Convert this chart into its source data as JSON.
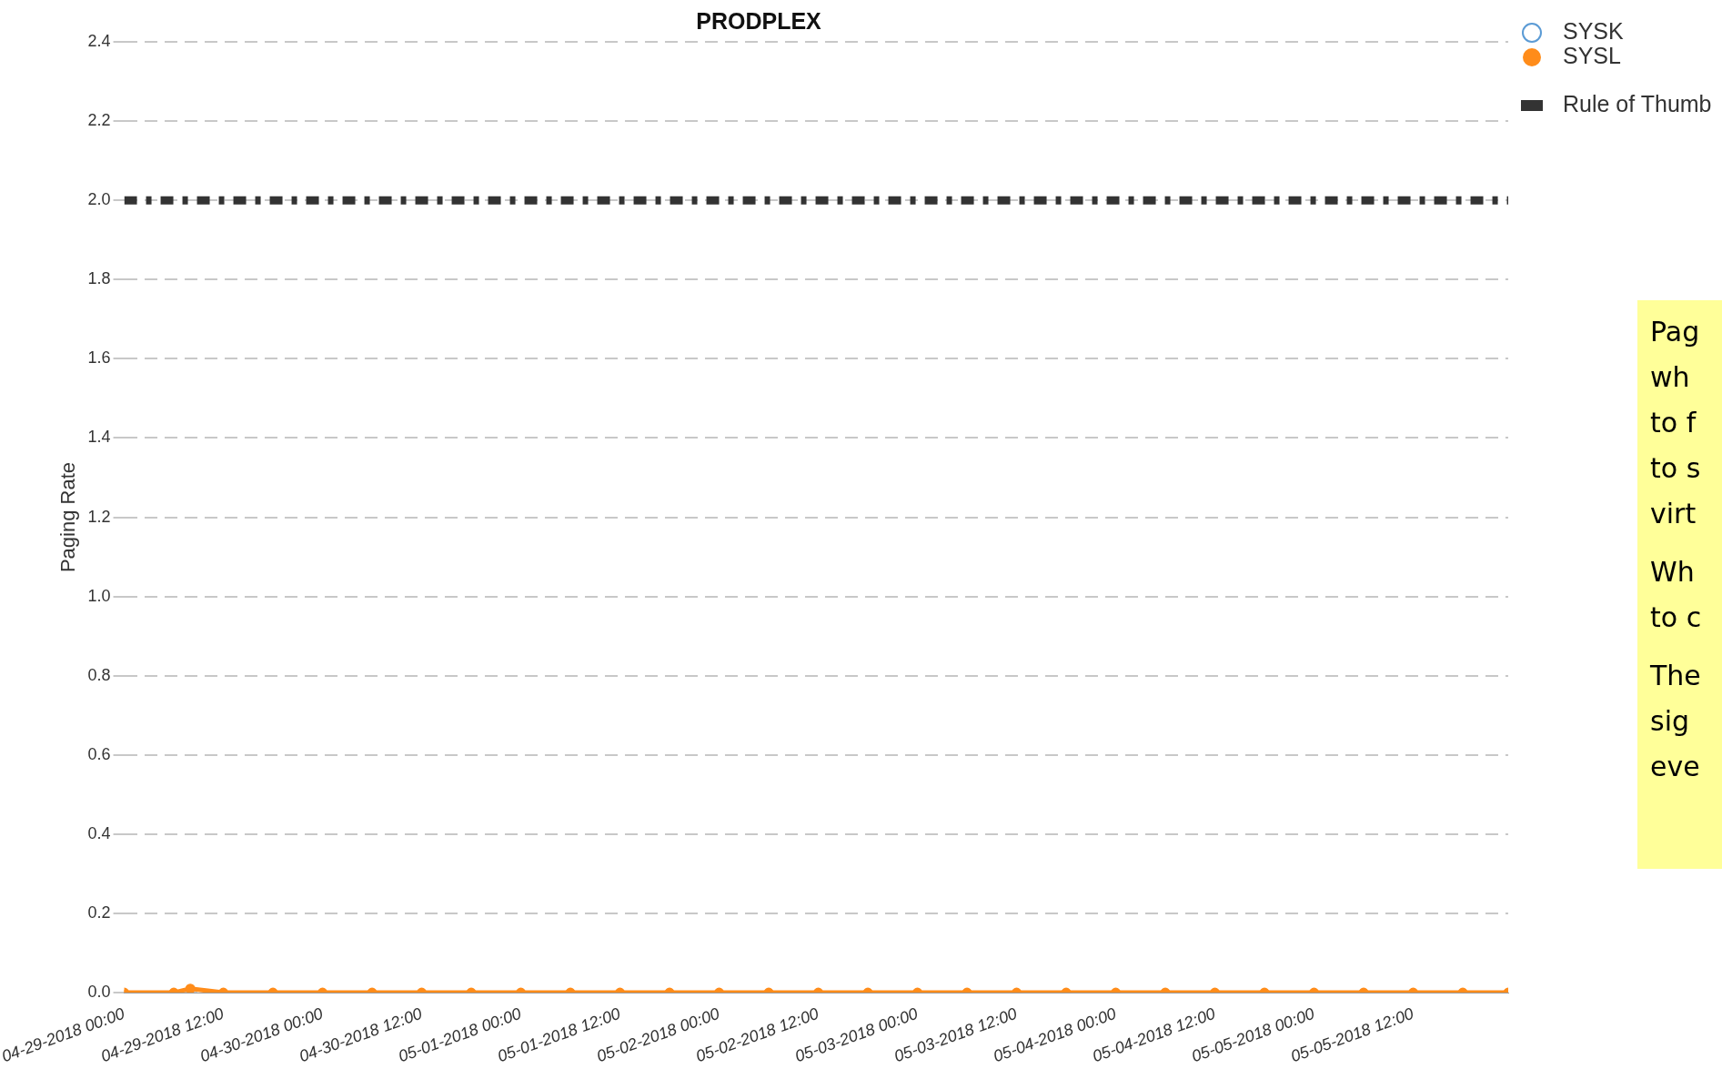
{
  "chart_data": {
    "type": "line",
    "title": "PRODPLEX",
    "ylabel": "Paging Rate",
    "x": [
      "2018-04-29T00:00",
      "2018-04-29T06:00",
      "2018-04-29T08:00",
      "2018-04-29T12:00",
      "2018-04-29T18:00",
      "2018-04-30T00:00",
      "2018-04-30T06:00",
      "2018-04-30T12:00",
      "2018-04-30T18:00",
      "2018-05-01T00:00",
      "2018-05-01T06:00",
      "2018-05-01T12:00",
      "2018-05-01T18:00",
      "2018-05-02T00:00",
      "2018-05-02T06:00",
      "2018-05-02T12:00",
      "2018-05-02T18:00",
      "2018-05-03T00:00",
      "2018-05-03T06:00",
      "2018-05-03T12:00",
      "2018-05-03T18:00",
      "2018-05-04T00:00",
      "2018-05-04T06:00",
      "2018-05-04T12:00",
      "2018-05-04T18:00",
      "2018-05-05T00:00",
      "2018-05-05T06:00",
      "2018-05-05T12:00",
      "2018-05-05T18:00",
      "2018-05-05T23:30"
    ],
    "series": [
      {
        "name": "SYSK",
        "color": "#5b9bd5",
        "values": [
          null,
          null,
          null,
          null,
          null,
          null,
          null,
          null,
          null,
          null,
          null,
          null,
          null,
          null,
          null,
          null,
          null,
          null,
          null,
          null,
          null,
          null,
          null,
          null,
          null,
          null,
          null,
          null,
          null,
          null
        ]
      },
      {
        "name": "SYSL",
        "color": "#ff8c1a",
        "values": [
          0,
          0,
          0.01,
          0,
          0,
          0,
          0,
          0,
          0,
          0,
          0,
          0,
          0,
          0,
          0,
          0,
          0,
          0,
          0,
          0,
          0,
          0,
          0,
          0,
          0,
          0,
          0,
          0,
          0,
          0
        ]
      }
    ],
    "ref_lines": [
      {
        "axis": "y",
        "value": 2.0,
        "label": "Rule of Thumb",
        "color": "#333333",
        "line_style": "dashed"
      }
    ],
    "xlim": [
      "2018-04-29T00:00",
      "2018-05-05T23:30"
    ],
    "xticks": [
      {
        "value": "2018-04-29T00:00",
        "label": "04-29-2018 00:00"
      },
      {
        "value": "2018-04-29T12:00",
        "label": "04-29-2018 12:00"
      },
      {
        "value": "2018-04-30T00:00",
        "label": "04-30-2018 00:00"
      },
      {
        "value": "2018-04-30T12:00",
        "label": "04-30-2018 12:00"
      },
      {
        "value": "2018-05-01T00:00",
        "label": "05-01-2018 00:00"
      },
      {
        "value": "2018-05-01T12:00",
        "label": "05-01-2018 12:00"
      },
      {
        "value": "2018-05-02T00:00",
        "label": "05-02-2018 00:00"
      },
      {
        "value": "2018-05-02T12:00",
        "label": "05-02-2018 12:00"
      },
      {
        "value": "2018-05-03T00:00",
        "label": "05-03-2018 00:00"
      },
      {
        "value": "2018-05-03T12:00",
        "label": "05-03-2018 12:00"
      },
      {
        "value": "2018-05-04T00:00",
        "label": "05-04-2018 00:00"
      },
      {
        "value": "2018-05-04T12:00",
        "label": "05-04-2018 12:00"
      },
      {
        "value": "2018-05-05T00:00",
        "label": "05-05-2018 00:00"
      },
      {
        "value": "2018-05-05T12:00",
        "label": "05-05-2018 12:00"
      }
    ],
    "ylim": [
      0,
      2.4
    ],
    "yticks": [
      {
        "value": 0,
        "label": "0.0"
      },
      {
        "value": 0.2,
        "label": "0.2"
      },
      {
        "value": 0.4,
        "label": "0.4"
      },
      {
        "value": 0.6,
        "label": "0.6"
      },
      {
        "value": 0.8,
        "label": "0.8"
      },
      {
        "value": 1.0,
        "label": "1.0"
      },
      {
        "value": 1.2,
        "label": "1.2"
      },
      {
        "value": 1.4,
        "label": "1.4"
      },
      {
        "value": 1.6,
        "label": "1.6"
      },
      {
        "value": 1.8,
        "label": "1.8"
      },
      {
        "value": 2.0,
        "label": "2.0"
      },
      {
        "value": 2.2,
        "label": "2.2"
      },
      {
        "value": 2.4,
        "label": "2.4"
      }
    ],
    "grid": "y",
    "legend": "top right",
    "marker": "circle",
    "line_style": "solid",
    "annotations": [
      "Pag\nwh\nto f\nto s\nvirt",
      "Wh\nto c",
      "The\nsig\neve"
    ]
  }
}
